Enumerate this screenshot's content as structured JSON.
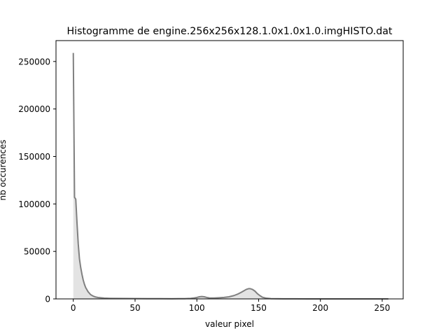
{
  "chart_data": {
    "type": "area",
    "title": "Histogramme de engine.256x256x128.1.0x1.0x1.0.imgHISTO.dat",
    "xlabel": "valeur pixel",
    "ylabel": "nb occurences",
    "xlim": [
      -14,
      267
    ],
    "ylim": [
      0,
      272000
    ],
    "xticks": [
      0,
      50,
      100,
      150,
      200,
      250
    ],
    "yticks": [
      0,
      50000,
      100000,
      150000,
      200000,
      250000
    ],
    "xtick_labels": [
      "0",
      "50",
      "100",
      "150",
      "200",
      "250"
    ],
    "ytick_labels": [
      "0",
      "50000",
      "100000",
      "150000",
      "200000",
      "250000"
    ],
    "grid": false,
    "line_color": "#808080",
    "fill_color": "#e3e3e3",
    "x": [
      0,
      1,
      2,
      3,
      4,
      5,
      6,
      7,
      8,
      9,
      10,
      12,
      14,
      16,
      18,
      20,
      25,
      30,
      40,
      50,
      60,
      70,
      80,
      90,
      95,
      98,
      100,
      102,
      104,
      106,
      108,
      110,
      114,
      118,
      122,
      126,
      130,
      133,
      136,
      138,
      140,
      142,
      143,
      145,
      147,
      149,
      151,
      153,
      156,
      160,
      165,
      170,
      180,
      190,
      200,
      220,
      240,
      255
    ],
    "y": [
      259000,
      107000,
      105000,
      80000,
      58000,
      42000,
      33000,
      26000,
      20000,
      15500,
      12000,
      7500,
      4500,
      3000,
      2000,
      1500,
      800,
      600,
      450,
      400,
      300,
      250,
      200,
      300,
      600,
      1000,
      1500,
      2200,
      2500,
      2200,
      1500,
      1000,
      900,
      1200,
      1600,
      2200,
      3500,
      5000,
      7000,
      8500,
      10000,
      10800,
      10800,
      10000,
      8200,
      5500,
      3500,
      1800,
      800,
      300,
      150,
      100,
      50,
      30,
      20,
      10,
      5,
      0
    ]
  }
}
